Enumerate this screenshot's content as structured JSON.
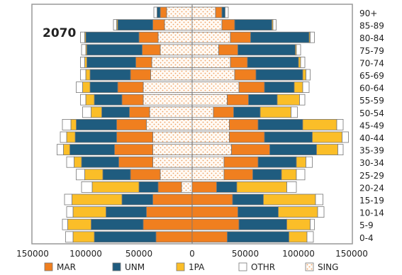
{
  "chart_data": {
    "type": "bar",
    "subtype": "population-pyramid",
    "title": "2070",
    "xlim": [
      -150000,
      150000
    ],
    "x_ticks": [
      -150000,
      -100000,
      -50000,
      0,
      50000,
      100000,
      150000
    ],
    "x_tick_labels": [
      "150000",
      "100000",
      "50000",
      "0",
      "50000",
      "100000",
      "150000"
    ],
    "categories": [
      "0-4",
      "5-9",
      "10-14",
      "15-19",
      "20-24",
      "25-29",
      "30-34",
      "35-39",
      "40-44",
      "45-49",
      "50-54",
      "55-59",
      "60-64",
      "65-69",
      "70-74",
      "75-79",
      "80-84",
      "85-89",
      "90+"
    ],
    "series": [
      {
        "name": "MAR",
        "color": "#f07f1f",
        "left": [
          34000,
          46000,
          43000,
          37000,
          22000,
          28000,
          32000,
          36000,
          34000,
          28000,
          19000,
          20000,
          24000,
          19000,
          15000,
          17000,
          18000,
          11000,
          6000
        ],
        "right": [
          33000,
          44000,
          43000,
          38000,
          23000,
          27000,
          32000,
          36000,
          33000,
          27000,
          19000,
          20000,
          24000,
          20000,
          16000,
          18000,
          19000,
          12000,
          6000
        ]
      },
      {
        "name": "UNM",
        "color": "#1f5c7f",
        "left": [
          58000,
          49000,
          38000,
          29000,
          18000,
          26000,
          35000,
          42000,
          39000,
          38000,
          26000,
          26000,
          26000,
          38000,
          46000,
          52000,
          50000,
          33000,
          3000
        ],
        "right": [
          58000,
          45000,
          38000,
          29000,
          19000,
          27000,
          36000,
          44000,
          45000,
          42000,
          25000,
          27000,
          28000,
          44000,
          48000,
          54000,
          55000,
          35000,
          3000
        ]
      },
      {
        "name": "1PA",
        "color": "#fbbe28",
        "left": [
          20000,
          22000,
          31000,
          47000,
          44000,
          17000,
          7000,
          6000,
          8000,
          5000,
          10000,
          8000,
          7000,
          4000,
          2000,
          1000,
          1000,
          1000,
          0
        ],
        "right": [
          17000,
          22000,
          37000,
          49000,
          47000,
          14000,
          9000,
          20000,
          28000,
          32000,
          29000,
          21000,
          8000,
          3000,
          2000,
          1000,
          1000,
          1000,
          0
        ]
      },
      {
        "name": "OTHR",
        "color": "#ffffff",
        "left": [
          7000,
          5000,
          6000,
          7000,
          10000,
          8000,
          7000,
          6000,
          6000,
          8000,
          8000,
          5000,
          6000,
          5000,
          4000,
          4000,
          4000,
          3000,
          3000
        ],
        "right": [
          6000,
          4000,
          6000,
          7000,
          9000,
          8000,
          6000,
          5000,
          6000,
          6000,
          6000,
          5000,
          6000,
          4000,
          4000,
          4000,
          4000,
          3000,
          3000
        ]
      },
      {
        "name": "SING",
        "color": "#fde0c8",
        "left": [
          0,
          0,
          0,
          0,
          10000,
          30000,
          37000,
          37000,
          37000,
          43000,
          40000,
          46000,
          46000,
          39000,
          38000,
          30000,
          32000,
          26000,
          24000
        ],
        "right": [
          0,
          0,
          0,
          0,
          0,
          30000,
          30000,
          37000,
          35000,
          35000,
          20000,
          33000,
          44000,
          40000,
          36000,
          25000,
          36000,
          28000,
          22000
        ]
      }
    ],
    "legend": {
      "position": "bottom",
      "entries": [
        "MAR",
        "UNM",
        "1PA",
        "OTHR",
        "SING"
      ]
    },
    "grid": false
  }
}
